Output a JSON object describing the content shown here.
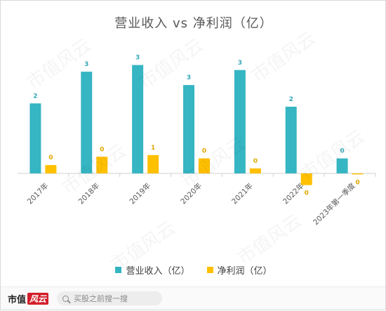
{
  "chart_data": {
    "type": "bar",
    "title": "营业收入 vs 净利润（亿）",
    "categories": [
      "2017年",
      "2018年",
      "2019年",
      "2020年",
      "2021年",
      "2022年",
      "2023年第一季度"
    ],
    "series": [
      {
        "name": "营业收入（亿）",
        "color": "#36b5c3",
        "values": [
          2.1,
          3.05,
          3.25,
          2.65,
          3.1,
          2.0,
          0.45
        ],
        "data_labels": [
          "2",
          "3",
          "3",
          "3",
          "3",
          "2",
          "0"
        ]
      },
      {
        "name": "净利润（亿）",
        "color": "#ffc000",
        "values": [
          0.25,
          0.5,
          0.55,
          0.45,
          0.15,
          -0.35,
          -0.03
        ],
        "data_labels": [
          "0",
          "0",
          "1",
          "0",
          "0",
          "0",
          "0"
        ]
      }
    ],
    "ylim": [
      -0.5,
      3.6
    ],
    "xlabel": "",
    "ylabel": "",
    "grid": false,
    "legend_position": "bottom"
  },
  "watermark": "市值风云",
  "footer": {
    "brand_main": "市值",
    "brand_accent": "风云",
    "search_placeholder": "买股之前搜一搜"
  }
}
